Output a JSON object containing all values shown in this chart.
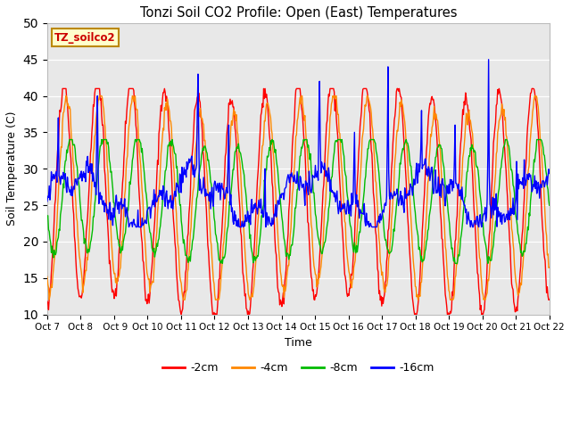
{
  "title": "Tonzi Soil CO2 Profile: Open (East) Temperatures",
  "ylabel": "Soil Temperature (C)",
  "xlabel": "Time",
  "ylim": [
    10,
    50
  ],
  "xlim": [
    0,
    360
  ],
  "colors": {
    "2cm": "#ff0000",
    "4cm": "#ff8800",
    "8cm": "#00bb00",
    "16cm": "#0000ff"
  },
  "legend_label": "TZ_soilco2",
  "xtick_labels": [
    "Oct 7",
    "Oct 8",
    " Oct 9",
    "Oct 10",
    "Oct 11",
    "Oct 12",
    "Oct 13",
    "Oct 14",
    "Oct 15",
    "Oct 16",
    "Oct 17",
    "Oct 18",
    "Oct 19",
    "Oct 20",
    "Oct 21",
    "Oct 22"
  ],
  "xtick_positions": [
    0,
    24,
    48,
    72,
    96,
    120,
    144,
    168,
    192,
    216,
    240,
    264,
    288,
    312,
    336,
    360
  ],
  "yticks": [
    10,
    15,
    20,
    25,
    30,
    35,
    40,
    45,
    50
  ],
  "figsize": [
    6.4,
    4.8
  ],
  "dpi": 100
}
